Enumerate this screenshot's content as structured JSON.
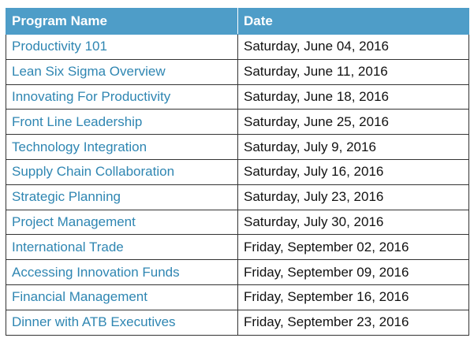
{
  "table": {
    "headers": [
      "Program Name",
      "Date"
    ],
    "rows": [
      {
        "program": "Productivity 101",
        "date": "Saturday, June 04, 2016"
      },
      {
        "program": "Lean Six Sigma Overview",
        "date": "Saturday, June 11, 2016"
      },
      {
        "program": "Innovating For Productivity",
        "date": "Saturday, June 18, 2016"
      },
      {
        "program": "Front Line Leadership",
        "date": "Saturday, June 25, 2016"
      },
      {
        "program": "Technology Integration",
        "date": "Saturday, July 9, 2016"
      },
      {
        "program": "Supply Chain Collaboration",
        "date": "Saturday, July 16, 2016"
      },
      {
        "program": "Strategic Planning",
        "date": "Saturday, July 23, 2016"
      },
      {
        "program": "Project Management",
        "date": "Saturday, July 30, 2016"
      },
      {
        "program": "International Trade",
        "date": "Friday, September 02, 2016"
      },
      {
        "program": "Accessing Innovation Funds",
        "date": "Friday, September 09, 2016"
      },
      {
        "program": "Financial Management",
        "date": "Friday, September 16, 2016"
      },
      {
        "program": "Dinner with ATB Executives",
        "date": "Friday, September 23, 2016"
      }
    ]
  },
  "colors": {
    "header_bg": "#4e9dc8",
    "header_text": "#ffffff",
    "program_link": "#2f86b2",
    "date_text": "#111111",
    "border": "#333333"
  }
}
